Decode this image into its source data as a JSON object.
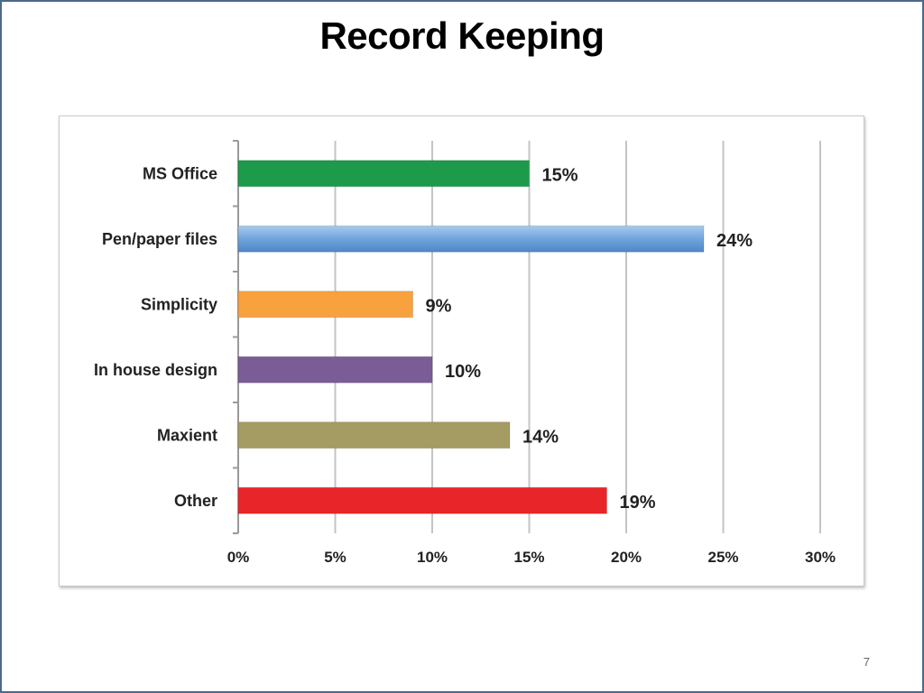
{
  "slide": {
    "title": "Record Keeping",
    "page_number": "7"
  },
  "chart_data": {
    "type": "bar",
    "orientation": "horizontal",
    "categories": [
      "MS Office",
      "Pen/paper files",
      "Simplicity",
      "In house design",
      "Maxient",
      "Other"
    ],
    "values": [
      15,
      24,
      9,
      10,
      14,
      19
    ],
    "value_labels": [
      "15%",
      "24%",
      "9%",
      "10%",
      "14%",
      "19%"
    ],
    "colors": [
      "#1e9a4b",
      "#6fa4dc",
      "#f7a23e",
      "#7a5c96",
      "#a59c64",
      "#e8262a"
    ],
    "x_ticks": [
      "0%",
      "5%",
      "10%",
      "15%",
      "20%",
      "25%",
      "30%"
    ],
    "xlim": [
      0,
      30
    ],
    "x_tick_step": 5,
    "grid": "vertical",
    "legend": "none"
  }
}
